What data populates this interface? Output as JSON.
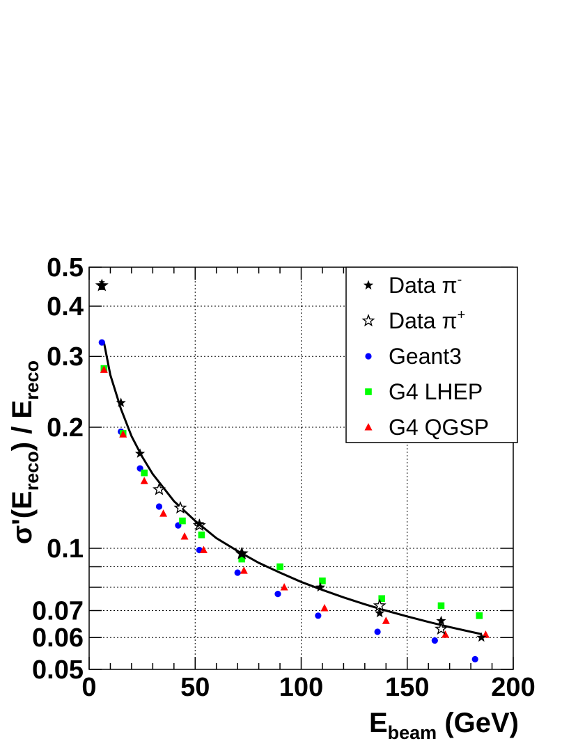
{
  "chart_data": {
    "type": "scatter",
    "xlabel": {
      "main": "E",
      "sub": "beam",
      "unit": " (GeV)"
    },
    "ylabel": {
      "a": "σ'(E",
      "sub1": "reco",
      "b": ") / E",
      "sub2": "reco"
    },
    "xlim": [
      0,
      200
    ],
    "ylim": [
      0.05,
      0.5
    ],
    "yscale": "log",
    "grid": true,
    "legend_position": "top-right",
    "x_ticks": [
      0,
      50,
      100,
      150,
      200
    ],
    "x_tick_labels": [
      "0",
      "50",
      "100",
      "150",
      "200"
    ],
    "y_ticks": [
      0.05,
      0.06,
      0.07,
      0.1,
      0.2,
      0.3,
      0.4,
      0.5
    ],
    "y_tick_labels": [
      "0.05",
      "0.06",
      "0.07",
      "0.1",
      "0.2",
      "0.3",
      "0.4",
      "0.5"
    ],
    "y_grid_extra": [
      0.08,
      0.09
    ],
    "series": [
      {
        "name": "Data π⁻",
        "legend_main": "Data π",
        "legend_sup": "-",
        "marker": "star-filled",
        "color": "#000000",
        "x": [
          6,
          15,
          24,
          52,
          72,
          109,
          137,
          166,
          185
        ],
        "y": [
          0.45,
          0.23,
          0.172,
          0.115,
          0.097,
          0.08,
          0.069,
          0.066,
          0.06
        ]
      },
      {
        "name": "Data π⁺",
        "legend_main": "Data π",
        "legend_sup": "+",
        "marker": "star-open",
        "color": "#000000",
        "x": [
          6,
          33,
          43,
          52,
          72,
          137,
          166
        ],
        "y": [
          0.45,
          0.14,
          0.126,
          0.114,
          0.097,
          0.072,
          0.063
        ]
      },
      {
        "name": "Geant3",
        "legend_main": "Geant3",
        "legend_sup": "",
        "marker": "circle",
        "color": "#0000ff",
        "x": [
          6,
          15,
          24,
          33,
          42,
          52,
          70,
          89,
          108,
          136,
          163,
          182
        ],
        "y": [
          0.325,
          0.195,
          0.158,
          0.127,
          0.114,
          0.099,
          0.087,
          0.077,
          0.068,
          0.062,
          0.059,
          0.053
        ]
      },
      {
        "name": "G4 LHEP",
        "legend_main": "G4 LHEP",
        "legend_sup": "",
        "marker": "square",
        "color": "#00ff00",
        "x": [
          7,
          16,
          26,
          44,
          53,
          72,
          90,
          110,
          138,
          166,
          184
        ],
        "y": [
          0.28,
          0.193,
          0.154,
          0.117,
          0.108,
          0.094,
          0.09,
          0.083,
          0.075,
          0.072,
          0.068
        ]
      },
      {
        "name": "G4 QGSP",
        "legend_main": "G4 QGSP",
        "legend_sup": "",
        "marker": "triangle",
        "color": "#ff0000",
        "x": [
          7,
          16,
          26,
          35,
          45,
          54,
          73,
          92,
          111,
          140,
          168,
          187
        ],
        "y": [
          0.278,
          0.192,
          0.147,
          0.122,
          0.107,
          0.099,
          0.088,
          0.08,
          0.071,
          0.066,
          0.061,
          0.061
        ]
      }
    ],
    "error_bars": [
      {
        "x": 6,
        "y": 0.45,
        "ylow": 0.44,
        "yhigh": 0.46
      }
    ],
    "fit_curve": {
      "x": [
        7,
        10,
        15,
        20,
        25,
        30,
        40,
        50,
        60,
        70,
        80,
        90,
        100,
        110,
        120,
        130,
        140,
        150,
        160,
        170,
        180,
        185
      ],
      "y": [
        0.325,
        0.27,
        0.222,
        0.19,
        0.169,
        0.153,
        0.131,
        0.117,
        0.106,
        0.0985,
        0.092,
        0.087,
        0.0825,
        0.0788,
        0.0755,
        0.0726,
        0.07,
        0.0677,
        0.0656,
        0.0637,
        0.062,
        0.0612
      ]
    }
  }
}
